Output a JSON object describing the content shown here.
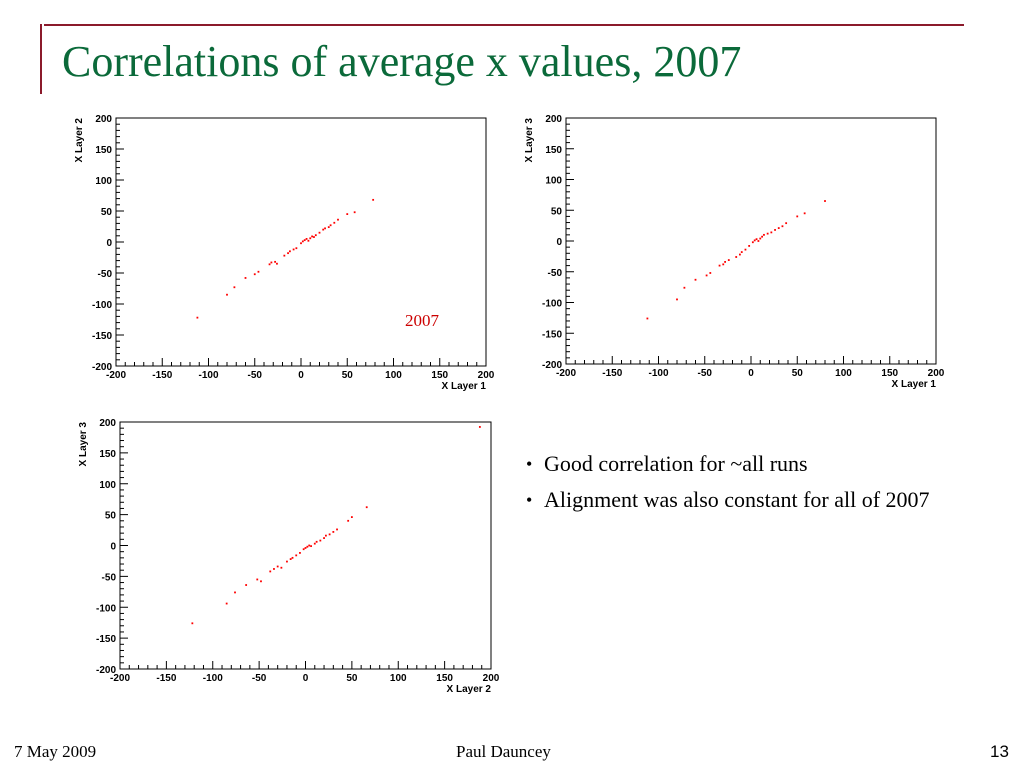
{
  "slide": {
    "title": "Correlations of average x values, 2007",
    "bullets": [
      "Good correlation for ~all runs",
      "Alignment was also constant for all of 2007"
    ],
    "footer": {
      "date": "7 May 2009",
      "author": "Paul Dauncey",
      "page": "13"
    },
    "colors": {
      "title": "#0b6a3a",
      "frame": "#8b1a2b",
      "points": "#ff0000",
      "annotation": "#cc0000"
    }
  },
  "chart_data": [
    {
      "type": "scatter",
      "title": "",
      "xlabel": "X Layer 1",
      "ylabel": "X Layer 2",
      "xlim": [
        -200,
        200
      ],
      "ylim": [
        -200,
        200
      ],
      "xticks": [
        -200,
        -150,
        -100,
        -50,
        0,
        50,
        100,
        150,
        200
      ],
      "yticks": [
        -200,
        -150,
        -100,
        -50,
        0,
        50,
        100,
        150,
        200
      ],
      "grid": false,
      "annotation": "2007",
      "points": [
        [
          -112,
          -122
        ],
        [
          -80,
          -85
        ],
        [
          -72,
          -73
        ],
        [
          -60,
          -58
        ],
        [
          -50,
          -52
        ],
        [
          -46,
          -48
        ],
        [
          -34,
          -36
        ],
        [
          -32,
          -33
        ],
        [
          -28,
          -32
        ],
        [
          -26,
          -35
        ],
        [
          -18,
          -22
        ],
        [
          -14,
          -18
        ],
        [
          -12,
          -15
        ],
        [
          -8,
          -12
        ],
        [
          -5,
          -10
        ],
        [
          0,
          -2
        ],
        [
          2,
          1
        ],
        [
          4,
          3
        ],
        [
          6,
          5
        ],
        [
          8,
          2
        ],
        [
          10,
          6
        ],
        [
          12,
          9
        ],
        [
          14,
          8
        ],
        [
          16,
          11
        ],
        [
          20,
          15
        ],
        [
          24,
          20
        ],
        [
          26,
          22
        ],
        [
          30,
          24
        ],
        [
          32,
          27
        ],
        [
          36,
          31
        ],
        [
          40,
          36
        ],
        [
          50,
          45
        ],
        [
          58,
          48
        ],
        [
          78,
          68
        ]
      ]
    },
    {
      "type": "scatter",
      "title": "",
      "xlabel": "X Layer 1",
      "ylabel": "X Layer 3",
      "xlim": [
        -200,
        200
      ],
      "ylim": [
        -200,
        200
      ],
      "xticks": [
        -200,
        -150,
        -100,
        -50,
        0,
        50,
        100,
        150,
        200
      ],
      "yticks": [
        -200,
        -150,
        -100,
        -50,
        0,
        50,
        100,
        150,
        200
      ],
      "grid": false,
      "points": [
        [
          -112,
          -126
        ],
        [
          -80,
          -95
        ],
        [
          -72,
          -76
        ],
        [
          -60,
          -63
        ],
        [
          -48,
          -56
        ],
        [
          -44,
          -52
        ],
        [
          -34,
          -40
        ],
        [
          -30,
          -38
        ],
        [
          -28,
          -34
        ],
        [
          -24,
          -31
        ],
        [
          -16,
          -26
        ],
        [
          -12,
          -22
        ],
        [
          -10,
          -18
        ],
        [
          -6,
          -14
        ],
        [
          -2,
          -8
        ],
        [
          2,
          -2
        ],
        [
          4,
          1
        ],
        [
          6,
          3
        ],
        [
          8,
          0
        ],
        [
          10,
          4
        ],
        [
          12,
          7
        ],
        [
          14,
          10
        ],
        [
          18,
          12
        ],
        [
          22,
          14
        ],
        [
          26,
          18
        ],
        [
          30,
          21
        ],
        [
          34,
          24
        ],
        [
          38,
          29
        ],
        [
          50,
          40
        ],
        [
          58,
          45
        ],
        [
          80,
          65
        ]
      ]
    },
    {
      "type": "scatter",
      "title": "",
      "xlabel": "X Layer 2",
      "ylabel": "X Layer 3",
      "xlim": [
        -200,
        200
      ],
      "ylim": [
        -200,
        200
      ],
      "xticks": [
        -200,
        -150,
        -100,
        -50,
        0,
        50,
        100,
        150,
        200
      ],
      "yticks": [
        -200,
        -150,
        -100,
        -50,
        0,
        50,
        100,
        150,
        200
      ],
      "grid": false,
      "points": [
        [
          -122,
          -126
        ],
        [
          -85,
          -94
        ],
        [
          -76,
          -76
        ],
        [
          -64,
          -64
        ],
        [
          -52,
          -55
        ],
        [
          -48,
          -58
        ],
        [
          -38,
          -42
        ],
        [
          -34,
          -38
        ],
        [
          -30,
          -34
        ],
        [
          -26,
          -36
        ],
        [
          -20,
          -26
        ],
        [
          -16,
          -22
        ],
        [
          -14,
          -20
        ],
        [
          -10,
          -16
        ],
        [
          -6,
          -12
        ],
        [
          -2,
          -6
        ],
        [
          0,
          -4
        ],
        [
          2,
          -2
        ],
        [
          4,
          0
        ],
        [
          6,
          -1
        ],
        [
          10,
          3
        ],
        [
          12,
          6
        ],
        [
          16,
          8
        ],
        [
          20,
          12
        ],
        [
          22,
          16
        ],
        [
          26,
          18
        ],
        [
          30,
          22
        ],
        [
          34,
          26
        ],
        [
          46,
          40
        ],
        [
          50,
          46
        ],
        [
          66,
          62
        ],
        [
          188,
          192
        ]
      ]
    }
  ]
}
